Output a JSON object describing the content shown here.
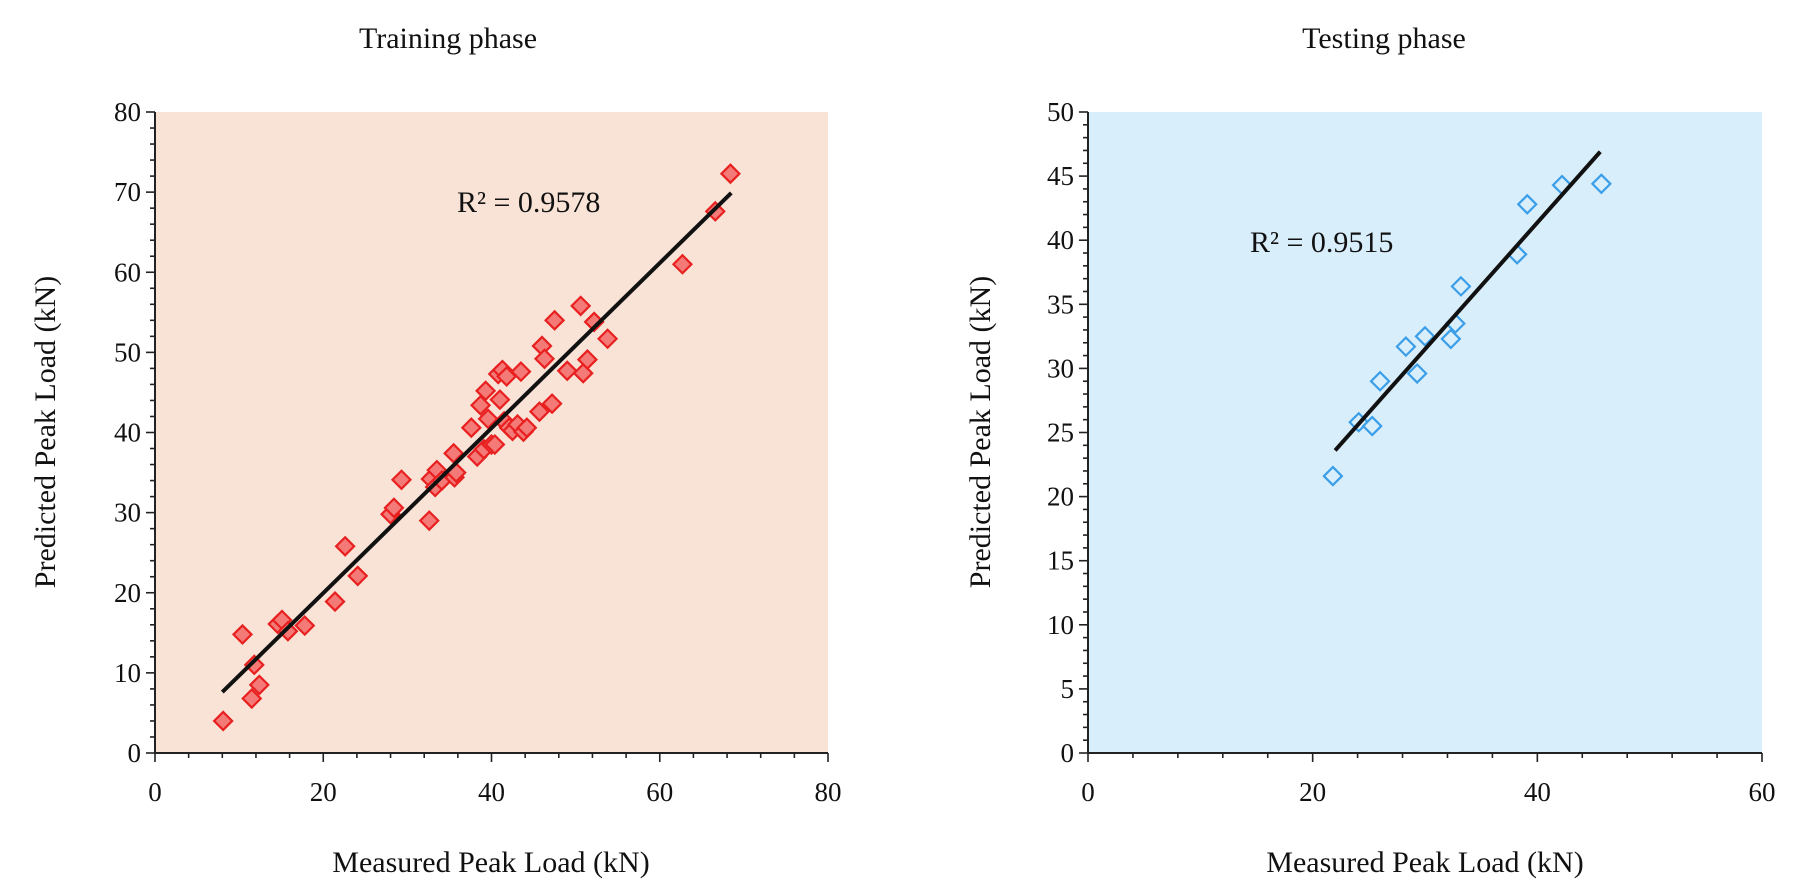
{
  "chart_data": [
    {
      "type": "scatter",
      "title": "Training phase",
      "xlabel": "Measured Peak Load (kN)",
      "ylabel": "Predicted Peak Load (kN)",
      "xlim": [
        0,
        80
      ],
      "ylim": [
        0,
        80
      ],
      "xticks": [
        0,
        20,
        40,
        60,
        80
      ],
      "yticks": [
        0,
        10,
        20,
        30,
        40,
        50,
        60,
        70,
        80
      ],
      "background_color": "#f9e3d7",
      "marker_color": "#e8201f",
      "marker_fill": "#f47a78",
      "marker": "diamond",
      "grid": false,
      "r2_label": "R² = 0.9578",
      "trendline": {
        "x": [
          8,
          68.5
        ],
        "y": [
          7.6,
          69.9
        ]
      },
      "points": [
        {
          "x": 8.1,
          "y": 4.0
        },
        {
          "x": 10.4,
          "y": 14.8
        },
        {
          "x": 11.5,
          "y": 6.8
        },
        {
          "x": 11.8,
          "y": 11.0
        },
        {
          "x": 12.4,
          "y": 8.5
        },
        {
          "x": 14.6,
          "y": 16.1
        },
        {
          "x": 15.1,
          "y": 16.6
        },
        {
          "x": 15.8,
          "y": 15.2
        },
        {
          "x": 17.8,
          "y": 15.9
        },
        {
          "x": 21.4,
          "y": 18.9
        },
        {
          "x": 22.6,
          "y": 25.8
        },
        {
          "x": 24.1,
          "y": 22.1
        },
        {
          "x": 28.0,
          "y": 29.8
        },
        {
          "x": 28.4,
          "y": 30.6
        },
        {
          "x": 29.3,
          "y": 34.1
        },
        {
          "x": 32.6,
          "y": 29.0
        },
        {
          "x": 32.8,
          "y": 34.2
        },
        {
          "x": 33.3,
          "y": 33.2
        },
        {
          "x": 33.5,
          "y": 35.3
        },
        {
          "x": 34.1,
          "y": 34.0
        },
        {
          "x": 35.5,
          "y": 37.4
        },
        {
          "x": 35.6,
          "y": 34.4
        },
        {
          "x": 35.8,
          "y": 35.0
        },
        {
          "x": 37.6,
          "y": 40.6
        },
        {
          "x": 38.3,
          "y": 37.0
        },
        {
          "x": 38.7,
          "y": 43.4
        },
        {
          "x": 39.1,
          "y": 37.9
        },
        {
          "x": 39.3,
          "y": 45.2
        },
        {
          "x": 39.6,
          "y": 41.7
        },
        {
          "x": 40.0,
          "y": 38.5
        },
        {
          "x": 40.4,
          "y": 38.5
        },
        {
          "x": 40.8,
          "y": 47.3
        },
        {
          "x": 41.0,
          "y": 44.1
        },
        {
          "x": 41.3,
          "y": 47.8
        },
        {
          "x": 41.5,
          "y": 41.4
        },
        {
          "x": 41.8,
          "y": 47.0
        },
        {
          "x": 42.1,
          "y": 40.6
        },
        {
          "x": 42.5,
          "y": 40.2
        },
        {
          "x": 43.1,
          "y": 41.0
        },
        {
          "x": 43.5,
          "y": 47.6
        },
        {
          "x": 43.8,
          "y": 40.1
        },
        {
          "x": 44.2,
          "y": 40.6
        },
        {
          "x": 45.7,
          "y": 42.6
        },
        {
          "x": 46.0,
          "y": 50.8
        },
        {
          "x": 46.3,
          "y": 49.2
        },
        {
          "x": 47.2,
          "y": 43.6
        },
        {
          "x": 47.5,
          "y": 54.0
        },
        {
          "x": 49.0,
          "y": 47.7
        },
        {
          "x": 50.6,
          "y": 55.8
        },
        {
          "x": 50.9,
          "y": 47.4
        },
        {
          "x": 51.4,
          "y": 49.1
        },
        {
          "x": 52.2,
          "y": 53.8
        },
        {
          "x": 53.8,
          "y": 51.7
        },
        {
          "x": 62.7,
          "y": 61.0
        },
        {
          "x": 66.6,
          "y": 67.6
        },
        {
          "x": 68.4,
          "y": 72.3
        }
      ]
    },
    {
      "type": "scatter",
      "title": "Testing phase",
      "xlabel": "Measured Peak Load (kN)",
      "ylabel": "Predicted Peak Load (kN)",
      "xlim": [
        0,
        60
      ],
      "ylim": [
        0,
        50
      ],
      "xticks": [
        0,
        20,
        40,
        60
      ],
      "yticks": [
        0,
        5,
        10,
        15,
        20,
        25,
        30,
        35,
        40,
        45,
        50
      ],
      "background_color": "#d9eefb",
      "marker_color": "#3a9ee8",
      "marker_fill": "#d9eefb",
      "marker": "diamond",
      "grid": false,
      "r2_label": "R² = 0.9515",
      "trendline": {
        "x": [
          22.0,
          45.6
        ],
        "y": [
          23.6,
          46.9
        ]
      },
      "points": [
        {
          "x": 21.8,
          "y": 21.6
        },
        {
          "x": 24.1,
          "y": 25.8
        },
        {
          "x": 25.3,
          "y": 25.5
        },
        {
          "x": 26.0,
          "y": 29.0
        },
        {
          "x": 28.3,
          "y": 31.7
        },
        {
          "x": 29.3,
          "y": 29.6
        },
        {
          "x": 30.0,
          "y": 32.5
        },
        {
          "x": 32.3,
          "y": 32.3
        },
        {
          "x": 32.7,
          "y": 33.5
        },
        {
          "x": 33.2,
          "y": 36.4
        },
        {
          "x": 38.2,
          "y": 38.9
        },
        {
          "x": 39.1,
          "y": 42.8
        },
        {
          "x": 42.2,
          "y": 44.3
        },
        {
          "x": 45.7,
          "y": 44.4
        }
      ]
    }
  ]
}
